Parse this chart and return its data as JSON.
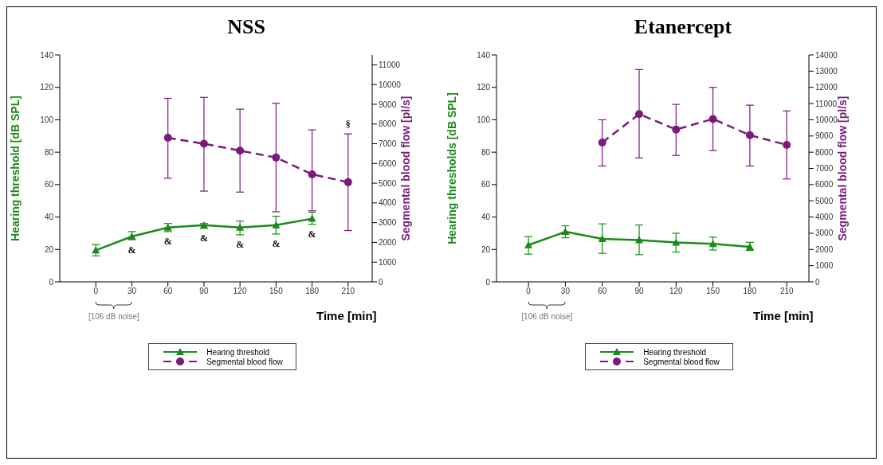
{
  "chart_data": [
    {
      "type": "line",
      "title": "NSS",
      "xlabel": "Time [min]",
      "ylabel": "Hearing threshold [dB SPL]",
      "y2label": "Segmental blood flow [pl/s]",
      "xlim": [
        -30,
        230
      ],
      "xticks": [
        0,
        30,
        60,
        90,
        120,
        150,
        180,
        210
      ],
      "ylim": [
        0,
        140
      ],
      "yticks": [
        0,
        20,
        40,
        60,
        80,
        100,
        120,
        140
      ],
      "y2lim": [
        0,
        11500
      ],
      "y2ticks": [
        0,
        1000,
        2000,
        3000,
        4000,
        5000,
        6000,
        7000,
        8000,
        9000,
        10000,
        11000
      ],
      "legend": "bottom",
      "series": [
        {
          "name": "Hearing threshold",
          "color": "#1a8a1a",
          "marker": "triangle",
          "line_style": "solid",
          "x": [
            0,
            30,
            60,
            90,
            120,
            150,
            180
          ],
          "values": [
            19.5,
            28,
            33.5,
            35,
            33.5,
            35,
            39
          ],
          "errors": [
            [
              16,
              23
            ],
            [
              26,
              31
            ],
            [
              31,
              36
            ],
            [
              33,
              36
            ],
            [
              29,
              37.5
            ],
            [
              29.5,
              40.5
            ],
            [
              35.5,
              43
            ]
          ]
        },
        {
          "name": "Segmental blood flow",
          "color": "#7a1a7a",
          "marker": "circle",
          "line_style": "dashed",
          "axis": "y2",
          "x": [
            60,
            90,
            120,
            150,
            180,
            210
          ],
          "values": [
            7300,
            7000,
            6650,
            6300,
            5450,
            5050
          ],
          "errors": [
            [
              5250,
              9300
            ],
            [
              4600,
              9350
            ],
            [
              4550,
              8750
            ],
            [
              3550,
              9050
            ],
            [
              3600,
              7700
            ],
            [
              2600,
              7500
            ]
          ]
        }
      ],
      "annotations": [
        {
          "text": "&",
          "x": 30,
          "y": 28
        },
        {
          "text": "&",
          "x": 60,
          "y": 33.5
        },
        {
          "text": "&",
          "x": 90,
          "y": 35
        },
        {
          "text": "&",
          "x": 120,
          "y": 33.5
        },
        {
          "text": "&",
          "x": 150,
          "y": 35
        },
        {
          "text": "&",
          "x": 180,
          "y": 39
        },
        "§",
        "[106 dB noise]"
      ]
    },
    {
      "type": "line",
      "title": "Etanercept",
      "xlabel": "Time [min]",
      "ylabel": "Hearing thresholds [dB SPL]",
      "y2label": "Segmental blood flow [pl/s]",
      "xlim": [
        -26,
        228
      ],
      "xticks": [
        0,
        30,
        60,
        90,
        120,
        150,
        180,
        210
      ],
      "ylim": [
        0,
        140
      ],
      "yticks": [
        0,
        20,
        40,
        60,
        80,
        100,
        120,
        140
      ],
      "y2lim": [
        0,
        14000
      ],
      "y2ticks": [
        0,
        1000,
        2000,
        3000,
        4000,
        5000,
        6000,
        7000,
        8000,
        9000,
        10000,
        11000,
        12000,
        13000,
        14000
      ],
      "legend": "bottom",
      "series": [
        {
          "name": "Hearing threshold",
          "color": "#1a8a1a",
          "marker": "triangle",
          "line_style": "solid",
          "x": [
            0,
            30,
            60,
            90,
            120,
            150,
            180
          ],
          "values": [
            22.7,
            30.9,
            26.5,
            25.8,
            24.3,
            23.4,
            21.6
          ],
          "errors": [
            [
              17.1,
              27.9
            ],
            [
              27.2,
              34.6
            ],
            [
              17.6,
              35.8
            ],
            [
              16.8,
              35.1
            ],
            [
              18.4,
              30
            ],
            [
              19.6,
              27.6
            ],
            [
              19.4,
              24.4
            ]
          ]
        },
        {
          "name": "Segmental blood flow",
          "color": "#7a1a7a",
          "marker": "circle",
          "line_style": "dashed",
          "axis": "y2",
          "x": [
            60,
            90,
            120,
            150,
            180,
            210
          ],
          "values": [
            8600,
            10350,
            9400,
            10050,
            9050,
            8450
          ],
          "errors": [
            [
              7150,
              10000
            ],
            [
              7650,
              13100
            ],
            [
              7800,
              10950
            ],
            [
              8100,
              12000
            ],
            [
              7150,
              10900
            ],
            [
              6350,
              10550
            ]
          ]
        }
      ],
      "annotations": [
        "[106 dB noise]"
      ]
    }
  ]
}
